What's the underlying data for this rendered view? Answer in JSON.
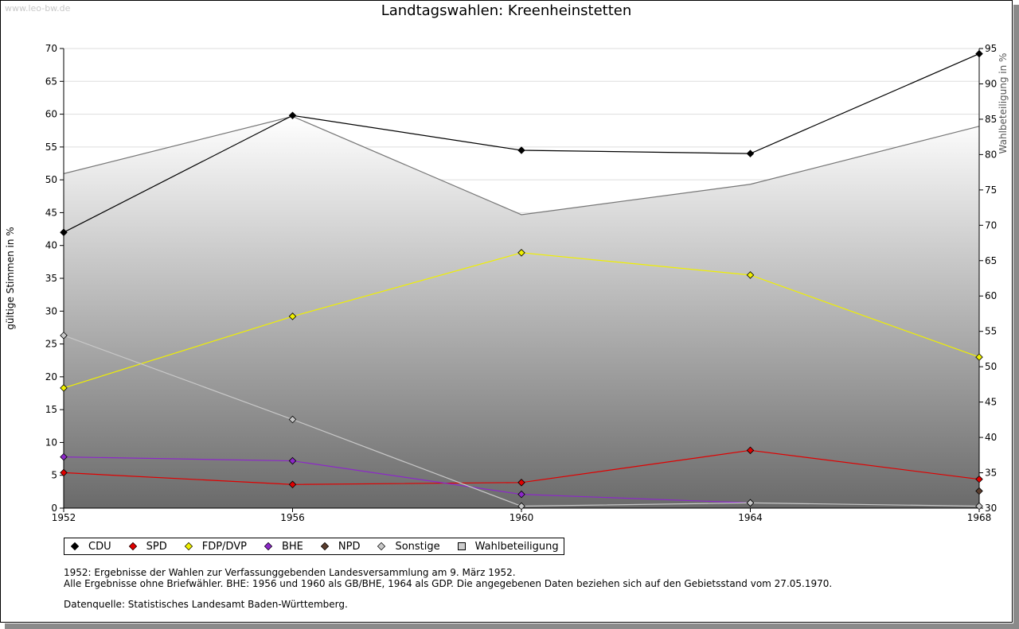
{
  "watermark": "www.leo-bw.de",
  "notes": [
    "1952: Ergebnisse der Wahlen zur Verfassunggebenden Landesversammlung am 9. März 1952.",
    "Alle Ergebnisse ohne Briefwähler. BHE: 1956 und 1960 als GB/BHE, 1964 als GDP. Die angegebenen Daten beziehen sich auf den Gebietsstand vom 27.05.1970."
  ],
  "source": "Datenquelle: Statistisches Landesamt Baden-Württemberg.",
  "chart_data": {
    "type": "line",
    "title": "Landtagswahlen: Kreenheinstetten",
    "ylabel": "gültige Stimmen in %",
    "y2label": "Wahlbeteiligung in %",
    "x": [
      1952,
      1956,
      1960,
      1964,
      1968
    ],
    "xticks": [
      "1952",
      "1956",
      "1960",
      "1964",
      "1968"
    ],
    "ylim": [
      0,
      70
    ],
    "yticks": [
      "0",
      "5",
      "10",
      "15",
      "20",
      "25",
      "30",
      "35",
      "40",
      "45",
      "50",
      "55",
      "60",
      "65",
      "70"
    ],
    "y2lim": [
      30,
      95
    ],
    "y2ticks": [
      "30",
      "35",
      "40",
      "45",
      "50",
      "55",
      "60",
      "65",
      "70",
      "75",
      "80",
      "85",
      "90",
      "95"
    ],
    "grid": true,
    "legend_position": "bottom-left",
    "area_series": {
      "name": "Wahlbeteiligung",
      "axis": "right",
      "values": [
        77.3,
        85.4,
        71.5,
        75.8,
        84.0
      ],
      "color": "#cccccc"
    },
    "series": [
      {
        "name": "CDU",
        "color": "#000000",
        "values": [
          42.0,
          59.8,
          54.5,
          54.0,
          69.2
        ]
      },
      {
        "name": "SPD",
        "color": "#e00000",
        "values": [
          5.4,
          3.6,
          3.9,
          8.8,
          4.4
        ]
      },
      {
        "name": "FDP/DVP",
        "color": "#f0f000",
        "values": [
          18.3,
          29.2,
          38.9,
          35.5,
          23.0
        ]
      },
      {
        "name": "BHE",
        "color": "#8c28c8",
        "values": [
          7.8,
          7.2,
          2.1,
          0.8,
          null
        ]
      },
      {
        "name": "NPD",
        "color": "#5a3c2d",
        "values": [
          null,
          null,
          null,
          null,
          2.6
        ]
      },
      {
        "name": "Sonstige",
        "color": "#c8c8c8",
        "values": [
          26.3,
          13.5,
          0.3,
          0.8,
          0.3
        ]
      }
    ]
  }
}
